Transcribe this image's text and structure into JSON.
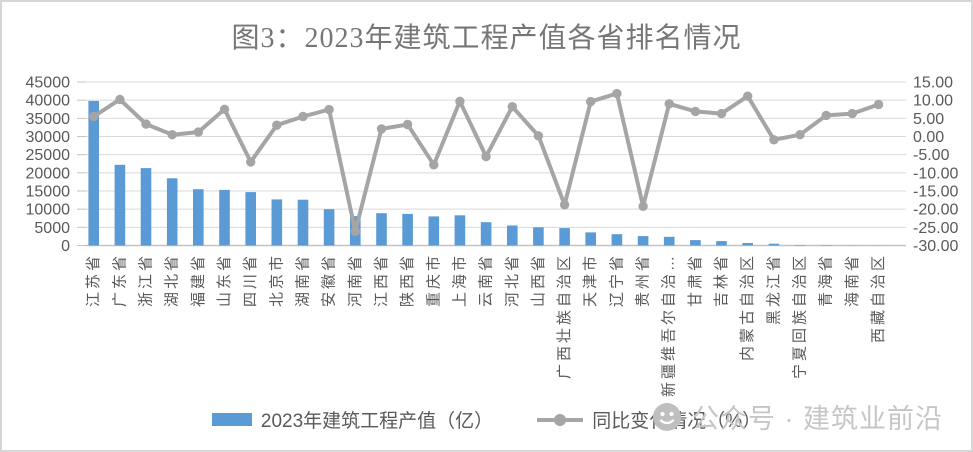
{
  "title": "图3：2023年建筑工程产值各省排名情况",
  "legend": {
    "bar_label": "2023年建筑工程产值（亿）",
    "line_label": "同比变化情况（%）"
  },
  "watermark": {
    "icon": "smiley-logo-icon",
    "text": "公众号 · 建筑业前沿"
  },
  "colors": {
    "bar": "#5B9BD5",
    "line": "#A5A5A5",
    "grid": "#D9D9D9",
    "axis_line": "#C3C3C3",
    "axis_text": "#595959",
    "title_text": "#767676",
    "watermark_text": "#C6C6C6"
  },
  "chart_data": {
    "type": "bar",
    "subtype": "combo-bar-line",
    "title": "图3：2023年建筑工程产值各省排名情况",
    "grid": true,
    "legend_position": "bottom",
    "categories": [
      "江苏省",
      "广东省",
      "浙江省",
      "湖北省",
      "福建省",
      "山东省",
      "四川省",
      "北京市",
      "湖南省",
      "安徽省",
      "河南省",
      "江西省",
      "陕西省",
      "重庆市",
      "上海市",
      "云南省",
      "河北省",
      "山西省",
      "广西壮族自治区",
      "天津市",
      "辽宁省",
      "贵州省",
      "新疆维吾尔自治…",
      "甘肃省",
      "吉林省",
      "内蒙古自治区",
      "黑龙江省",
      "宁夏回族自治区",
      "青海省",
      "海南省",
      "西藏自治区"
    ],
    "series": [
      {
        "name": "2023年建筑工程产值（亿）",
        "type": "bar",
        "axis": "left",
        "values": [
          39800,
          22200,
          21300,
          18500,
          15500,
          15300,
          14700,
          12700,
          12600,
          10000,
          8100,
          8900,
          8700,
          8000,
          8300,
          6400,
          5500,
          5000,
          4800,
          3600,
          3100,
          2600,
          2400,
          1500,
          1200,
          700,
          500,
          150,
          120,
          60,
          40
        ]
      },
      {
        "name": "同比变化情况（%）",
        "type": "line",
        "axis": "right",
        "values": [
          5.5,
          10.2,
          3.4,
          0.5,
          1.2,
          7.5,
          -7.0,
          3.1,
          5.5,
          7.4,
          -26.1,
          2.1,
          3.3,
          -7.8,
          9.7,
          -5.5,
          8.2,
          0.2,
          -18.8,
          9.6,
          11.8,
          -19.2,
          9.0,
          6.9,
          6.3,
          11.1,
          -0.9,
          0.5,
          5.8,
          6.3,
          8.8
        ]
      }
    ],
    "left_axis": {
      "min": 0,
      "max": 45000,
      "step": 5000,
      "ticks": [
        "45000",
        "40000",
        "35000",
        "30000",
        "25000",
        "20000",
        "15000",
        "10000",
        "5000",
        "0"
      ]
    },
    "right_axis": {
      "min": -30,
      "max": 15,
      "step": 5,
      "ticks": [
        "15.00",
        "10.00",
        "5.00",
        "0.00",
        "-5.00",
        "-10.00",
        "-15.00",
        "-20.00",
        "-25.00",
        "-30.00"
      ]
    }
  }
}
